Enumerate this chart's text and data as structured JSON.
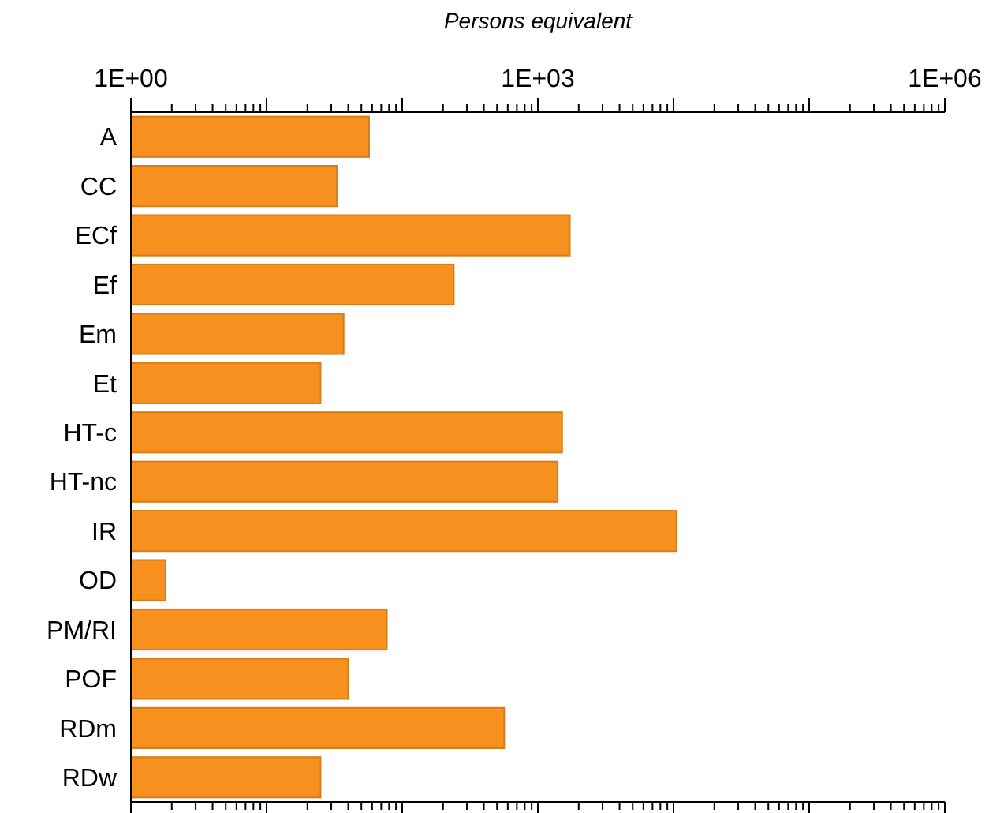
{
  "chart_data": {
    "type": "bar",
    "orientation": "horizontal",
    "xlabel": "Persons equivalent",
    "log": "x",
    "categories": [
      "A",
      "CC",
      "ECf",
      "Ef",
      "Em",
      "Et",
      "HT-c",
      "HT-nc",
      "IR",
      "OD",
      "PM/RI",
      "POF",
      "RDm",
      "RDw"
    ],
    "values": [
      57,
      33,
      1720,
      240,
      37,
      25,
      1510,
      1400,
      10500,
      1.8,
      77,
      40,
      565,
      25
    ],
    "color": "#f7901e",
    "xlim": [
      1,
      1000000
    ],
    "xticks": [
      {
        "value": 1,
        "label": "1E+00"
      },
      {
        "value": 2,
        "label": null
      },
      {
        "value": 3,
        "label": null
      },
      {
        "value": 4,
        "label": null
      },
      {
        "value": 5,
        "label": null
      },
      {
        "value": 6,
        "label": null
      },
      {
        "value": 7,
        "label": null
      },
      {
        "value": 8,
        "label": null
      },
      {
        "value": 9,
        "label": null
      },
      {
        "value": 10,
        "label": null
      },
      {
        "value": 20,
        "label": null
      },
      {
        "value": 30,
        "label": null
      },
      {
        "value": 40,
        "label": null
      },
      {
        "value": 50,
        "label": null
      },
      {
        "value": 60,
        "label": null
      },
      {
        "value": 70,
        "label": null
      },
      {
        "value": 80,
        "label": null
      },
      {
        "value": 90,
        "label": null
      },
      {
        "value": 100,
        "label": null
      },
      {
        "value": 200,
        "label": null
      },
      {
        "value": 300,
        "label": null
      },
      {
        "value": 400,
        "label": null
      },
      {
        "value": 500,
        "label": null
      },
      {
        "value": 600,
        "label": null
      },
      {
        "value": 700,
        "label": null
      },
      {
        "value": 800,
        "label": null
      },
      {
        "value": 900,
        "label": null
      },
      {
        "value": 1000,
        "label": "1E+03"
      },
      {
        "value": 2000,
        "label": null
      },
      {
        "value": 3000,
        "label": null
      },
      {
        "value": 4000,
        "label": null
      },
      {
        "value": 5000,
        "label": null
      },
      {
        "value": 6000,
        "label": null
      },
      {
        "value": 7000,
        "label": null
      },
      {
        "value": 8000,
        "label": null
      },
      {
        "value": 9000,
        "label": null
      },
      {
        "value": 10000,
        "label": null
      },
      {
        "value": 20000,
        "label": null
      },
      {
        "value": 30000,
        "label": null
      },
      {
        "value": 40000,
        "label": null
      },
      {
        "value": 50000,
        "label": null
      },
      {
        "value": 60000,
        "label": null
      },
      {
        "value": 70000,
        "label": null
      },
      {
        "value": 80000,
        "label": null
      },
      {
        "value": 90000,
        "label": null
      },
      {
        "value": 100000,
        "label": null
      },
      {
        "value": 200000,
        "label": null
      },
      {
        "value": 300000,
        "label": null
      },
      {
        "value": 400000,
        "label": null
      },
      {
        "value": 500000,
        "label": null
      },
      {
        "value": 600000,
        "label": null
      },
      {
        "value": 700000,
        "label": null
      },
      {
        "value": 800000,
        "label": null
      },
      {
        "value": 900000,
        "label": null
      },
      {
        "value": 1000000,
        "label": "1E+06"
      }
    ],
    "grid": false
  }
}
